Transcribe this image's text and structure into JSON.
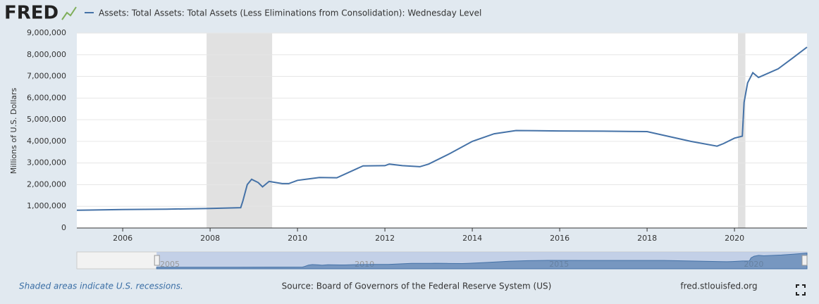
{
  "logo": "FRED",
  "chart_data": {
    "type": "line",
    "legend_title": "Assets: Total Assets: Total Assets (Less Eliminations from Consolidation): Wednesday Level",
    "y_label": "Millions of U.S. Dollars",
    "xlim": [
      2004.95,
      2021.66
    ],
    "xticks": [
      2006,
      2008,
      2010,
      2012,
      2014,
      2016,
      2018,
      2020
    ],
    "ylim": [
      0,
      9000000
    ],
    "yticks": [
      0,
      {
        "value": 1000000,
        "label": "1,000,000"
      },
      {
        "value": 2000000,
        "label": "2,000,000"
      },
      {
        "value": 3000000,
        "label": "3,000,000"
      },
      {
        "value": 4000000,
        "label": "4,000,000"
      },
      {
        "value": 5000000,
        "label": "5,000,000"
      },
      {
        "value": 6000000,
        "label": "6,000,000"
      },
      {
        "value": 7000000,
        "label": "7,000,000"
      },
      {
        "value": 8000000,
        "label": "8,000,000"
      },
      {
        "value": 9000000,
        "label": "9,000,000"
      }
    ],
    "grid": true,
    "recessions": [
      [
        2007.92,
        2009.42
      ],
      [
        2020.08,
        2020.25
      ]
    ],
    "recession_color": "#e1e1e1",
    "series": [
      {
        "name": "Assets: Total Assets: Total Assets (Less Eliminations from Consolidation): Wednesday Level",
        "color": "#4572a7",
        "x": [
          2004.95,
          2006,
          2007,
          2008,
          2008.7,
          2008.75,
          2008.85,
          2008.95,
          2009.1,
          2009.2,
          2009.35,
          2009.5,
          2009.65,
          2009.8,
          2010,
          2010.5,
          2010.9,
          2011.5,
          2012,
          2012.1,
          2012.4,
          2012.8,
          2013,
          2013.5,
          2014,
          2014.5,
          2015,
          2016,
          2017,
          2018,
          2019,
          2019.6,
          2019.75,
          2020,
          2020.18,
          2020.22,
          2020.3,
          2020.42,
          2020.55,
          2021,
          2021.3,
          2021.66
        ],
        "values": [
          820000,
          850000,
          870000,
          900000,
          940000,
          1250000,
          2000000,
          2250000,
          2100000,
          1900000,
          2150000,
          2100000,
          2050000,
          2050000,
          2200000,
          2330000,
          2320000,
          2870000,
          2880000,
          2950000,
          2880000,
          2830000,
          2950000,
          3450000,
          4000000,
          4350000,
          4500000,
          4480000,
          4470000,
          4450000,
          4000000,
          3780000,
          3900000,
          4150000,
          4240000,
          5800000,
          6700000,
          7170000,
          6950000,
          7350000,
          7800000,
          8350000
        ]
      }
    ],
    "navigator": {
      "xlim": [
        2002.9,
        2021.66
      ],
      "xticks": [
        2005,
        2010,
        2015,
        2020
      ]
    }
  },
  "footer": {
    "note": "Shaded areas indicate U.S. recessions.",
    "source": "Source: Board of Governors of the Federal Reserve System (US)",
    "site": "fred.stlouisfed.org"
  }
}
